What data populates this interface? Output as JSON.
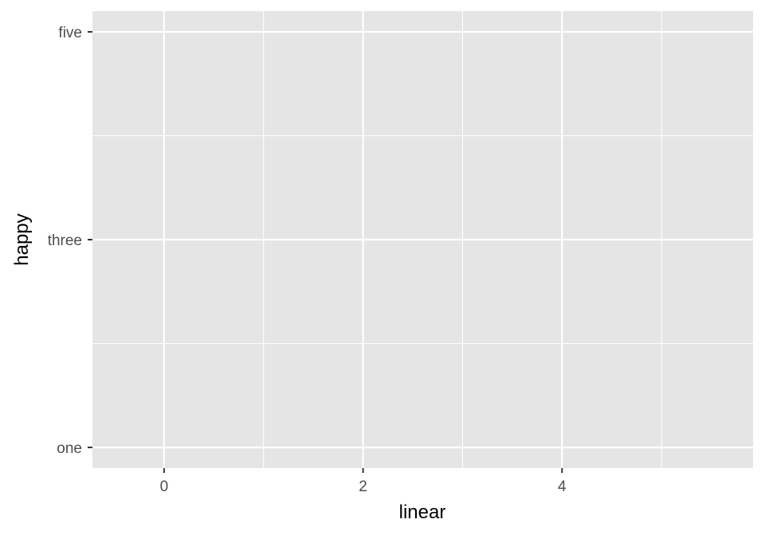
{
  "chart_data": {
    "type": "scatter",
    "title": "",
    "xlabel": "linear",
    "ylabel": "happy",
    "x_ticks": [
      0,
      2,
      4
    ],
    "x_minor_ticks": [
      1,
      3,
      5
    ],
    "xlim": [
      -0.72,
      5.92
    ],
    "y_categories": [
      "one",
      "three",
      "five"
    ],
    "y_minor_breaks": [
      "two",
      "four"
    ],
    "series": [],
    "grid": true,
    "legend": "none",
    "colors": {
      "panel": "#e5e5e5",
      "grid": "#ffffff",
      "tick_text": "#4d4d4d",
      "tick_mark": "#333333",
      "title_text": "#000000"
    }
  }
}
